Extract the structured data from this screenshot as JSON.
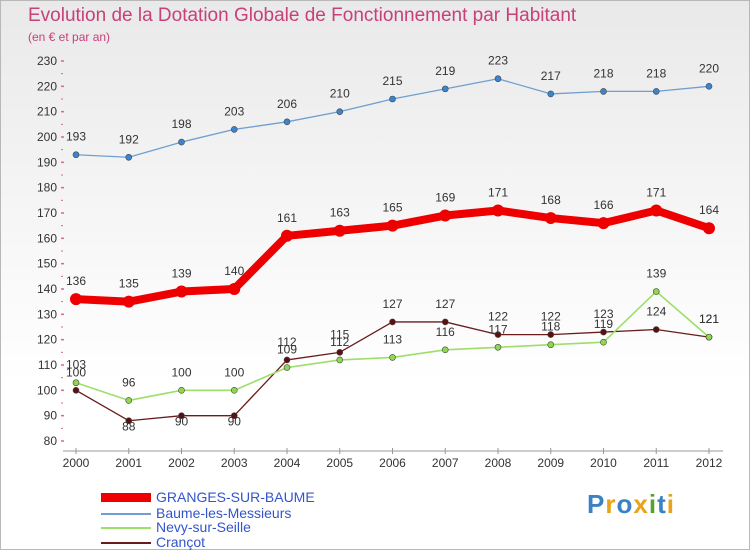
{
  "title": "Evolution de la Dotation Globale de Fonctionnement par Habitant",
  "subtitle": "(en € et par an)",
  "logo": {
    "letters": [
      {
        "ch": "P",
        "color": "#3b82c4"
      },
      {
        "ch": "r",
        "color": "#e8a317"
      },
      {
        "ch": "o",
        "color": "#3b82c4"
      },
      {
        "ch": "x",
        "color": "#e8a317"
      },
      {
        "ch": "i",
        "color": "#5aa02c"
      },
      {
        "ch": "t",
        "color": "#3b82c4"
      },
      {
        "ch": "i",
        "color": "#e8a317"
      }
    ]
  },
  "chart_data": {
    "type": "line",
    "title": "Evolution de la Dotation Globale de Fonctionnement par Habitant",
    "subtitle": "(en € et par an)",
    "x": [
      "2000",
      "2001",
      "2002",
      "2003",
      "2004",
      "2005",
      "2006",
      "2007",
      "2008",
      "2009",
      "2010",
      "2011",
      "2012"
    ],
    "ylim": [
      80,
      230
    ],
    "yticks": [
      80,
      90,
      100,
      110,
      120,
      130,
      140,
      150,
      160,
      170,
      180,
      190,
      200,
      210,
      220,
      230
    ],
    "grid": false,
    "legend_position": "bottom-left",
    "series": [
      {
        "name": "GRANGES-SUR-BAUME",
        "color": "#ee0000",
        "values": [
          136,
          135,
          139,
          140,
          161,
          163,
          165,
          169,
          171,
          168,
          166,
          171,
          164
        ]
      },
      {
        "name": "Baume-les-Messieurs",
        "color": "#6f9fd0",
        "values": [
          193,
          192,
          198,
          203,
          206,
          210,
          215,
          219,
          223,
          217,
          218,
          218,
          220
        ]
      },
      {
        "name": "Nevy-sur-Seille",
        "color": "#9ede6a",
        "values": [
          103,
          96,
          100,
          100,
          109,
          112,
          113,
          116,
          117,
          118,
          119,
          139,
          121
        ]
      },
      {
        "name": "Crançot",
        "color": "#6a1c1c",
        "values": [
          100,
          88,
          90,
          90,
          112,
          115,
          127,
          127,
          122,
          122,
          123,
          124,
          121
        ]
      }
    ]
  }
}
